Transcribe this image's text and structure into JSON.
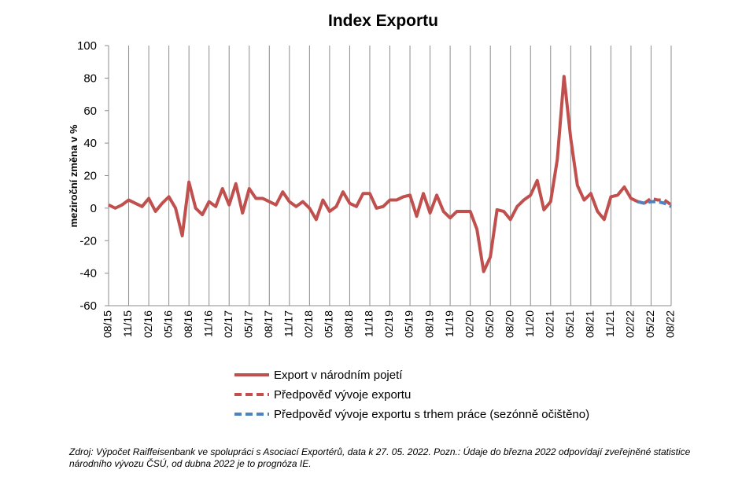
{
  "chart_data": {
    "type": "line",
    "title": "Index Exportu",
    "ylabel": "meziroční změna v %",
    "xlabel": "",
    "ylim": [
      -60,
      100
    ],
    "yticks": [
      -60,
      -40,
      -20,
      0,
      20,
      40,
      60,
      80,
      100
    ],
    "grid": "vertical",
    "legend_position": "bottom",
    "x_ticks": [
      "08/15",
      "11/15",
      "02/16",
      "05/16",
      "08/16",
      "11/16",
      "02/17",
      "05/17",
      "08/17",
      "11/17",
      "02/18",
      "05/18",
      "08/18",
      "11/18",
      "02/19",
      "05/19",
      "08/19",
      "11/19",
      "02/20",
      "05/20",
      "08/20",
      "11/20",
      "02/21",
      "05/21",
      "08/21",
      "11/21",
      "02/22",
      "05/22",
      "08/22"
    ],
    "x": [
      "08/15",
      "09/15",
      "10/15",
      "11/15",
      "12/15",
      "01/16",
      "02/16",
      "03/16",
      "04/16",
      "05/16",
      "06/16",
      "07/16",
      "08/16",
      "09/16",
      "10/16",
      "11/16",
      "12/16",
      "01/17",
      "02/17",
      "03/17",
      "04/17",
      "05/17",
      "06/17",
      "07/17",
      "08/17",
      "09/17",
      "10/17",
      "11/17",
      "12/17",
      "01/18",
      "02/18",
      "03/18",
      "04/18",
      "05/18",
      "06/18",
      "07/18",
      "08/18",
      "09/18",
      "10/18",
      "11/18",
      "12/18",
      "01/19",
      "02/19",
      "03/19",
      "04/19",
      "05/19",
      "06/19",
      "07/19",
      "08/19",
      "09/19",
      "10/19",
      "11/19",
      "12/19",
      "01/20",
      "02/20",
      "03/20",
      "04/20",
      "05/20",
      "06/20",
      "07/20",
      "08/20",
      "09/20",
      "10/20",
      "11/20",
      "12/20",
      "01/21",
      "02/21",
      "03/21",
      "04/21",
      "05/21",
      "06/21",
      "07/21",
      "08/21",
      "09/21",
      "10/21",
      "11/21",
      "12/21",
      "01/22",
      "02/22",
      "03/22",
      "04/22",
      "05/22",
      "06/22",
      "07/22",
      "08/22"
    ],
    "series": [
      {
        "name": "Export v národním pojetí",
        "color": "#c0504d",
        "dash": "solid",
        "values": [
          2,
          0,
          2,
          5,
          3,
          1,
          6,
          -2,
          3,
          7,
          0,
          -17,
          16,
          0,
          -4,
          4,
          1,
          12,
          2,
          15,
          -3,
          12,
          6,
          6,
          4,
          2,
          10,
          4,
          1,
          4,
          0,
          -7,
          5,
          -2,
          1,
          10,
          3,
          1,
          9,
          9,
          0,
          1,
          5,
          5,
          7,
          8,
          -5,
          9,
          -3,
          8,
          -2,
          -6,
          -2,
          -2,
          -2,
          -13,
          -39,
          -30,
          -1,
          -2,
          -7,
          1,
          5,
          8,
          17,
          -1,
          4,
          30,
          81,
          43,
          14,
          5,
          9,
          -2,
          -7,
          7,
          8,
          13,
          6,
          4,
          3,
          null,
          null,
          null,
          null
        ]
      },
      {
        "name": "Předpověď vývoje exportu",
        "color": "#c0504d",
        "dash": "dashed",
        "values": [
          null,
          null,
          null,
          null,
          null,
          null,
          null,
          null,
          null,
          null,
          null,
          null,
          null,
          null,
          null,
          null,
          null,
          null,
          null,
          null,
          null,
          null,
          null,
          null,
          null,
          null,
          null,
          null,
          null,
          null,
          null,
          null,
          null,
          null,
          null,
          null,
          null,
          null,
          null,
          null,
          null,
          null,
          null,
          null,
          null,
          null,
          null,
          null,
          null,
          null,
          null,
          null,
          null,
          null,
          null,
          null,
          null,
          null,
          null,
          null,
          null,
          null,
          null,
          null,
          null,
          null,
          null,
          null,
          null,
          null,
          null,
          null,
          null,
          null,
          null,
          null,
          null,
          null,
          null,
          null,
          3,
          6,
          5,
          5,
          2
        ]
      },
      {
        "name": "Předpověď vývoje exportu s trhem práce (sezónně očištěno)",
        "color": "#4f81bd",
        "dash": "dashed",
        "values": [
          null,
          null,
          null,
          null,
          null,
          null,
          null,
          null,
          null,
          null,
          null,
          null,
          null,
          null,
          null,
          null,
          null,
          null,
          null,
          null,
          null,
          null,
          null,
          null,
          null,
          null,
          null,
          null,
          null,
          null,
          null,
          null,
          null,
          null,
          null,
          null,
          null,
          null,
          null,
          null,
          null,
          null,
          null,
          null,
          null,
          null,
          null,
          null,
          null,
          null,
          null,
          null,
          null,
          null,
          null,
          null,
          null,
          null,
          null,
          null,
          null,
          null,
          null,
          null,
          null,
          null,
          null,
          null,
          null,
          null,
          null,
          null,
          null,
          null,
          null,
          null,
          null,
          null,
          null,
          4,
          3,
          4,
          4,
          3,
          1
        ]
      }
    ]
  },
  "source_note": "Zdroj: Výpočet Raiffeisenbank ve spolupráci s Asociací Exportérů, data k 27. 05. 2022. Pozn.: Údaje do března 2022 odpovídají zveřejněné statistice národního vývozu ČSÚ, od dubna 2022 je to prognóza IE."
}
